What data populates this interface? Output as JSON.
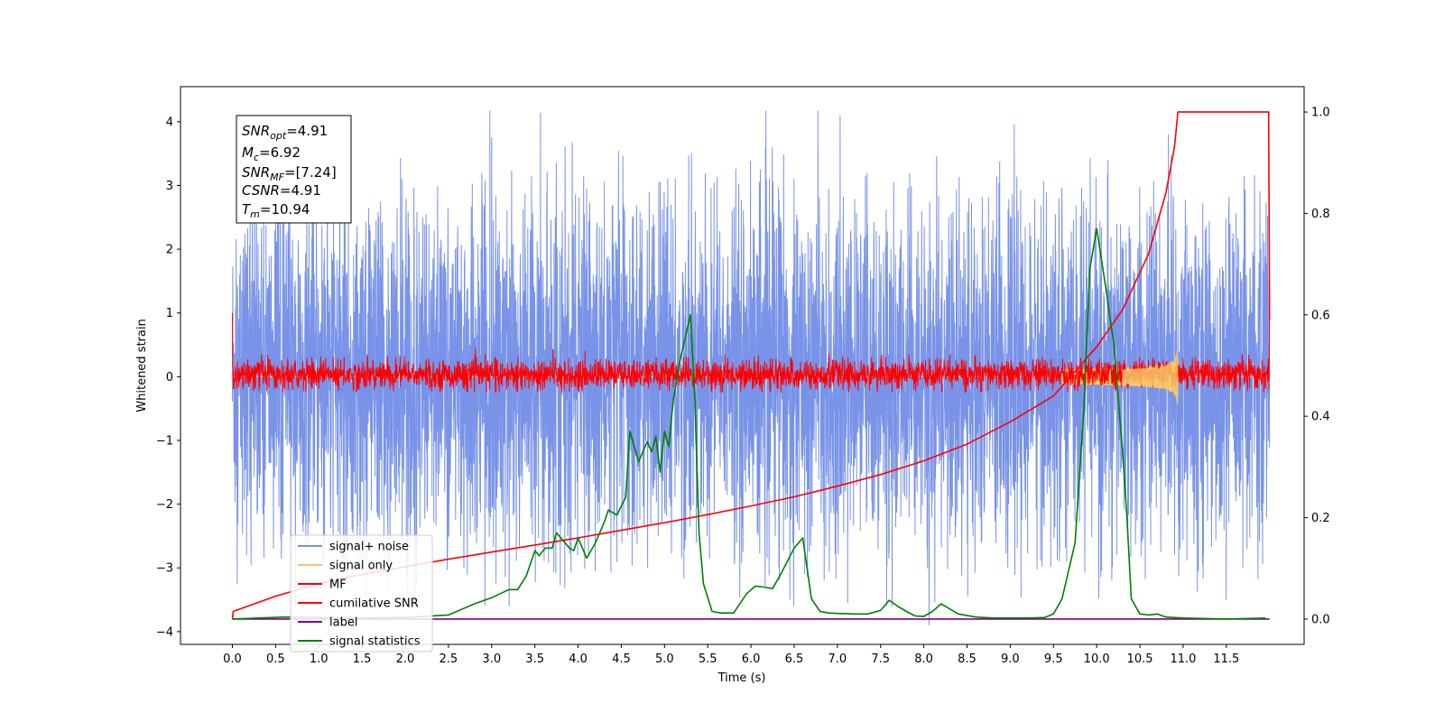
{
  "chart_data": {
    "type": "line",
    "xlabel": "Time (s)",
    "ylabel": "Whitened strain",
    "xlim": [
      -0.6,
      12.4
    ],
    "ylim": [
      -4.2,
      4.55
    ],
    "y2lim": [
      -0.05,
      1.05
    ],
    "x_ticks": [
      0.0,
      0.5,
      1.0,
      1.5,
      2.0,
      2.5,
      3.0,
      3.5,
      4.0,
      4.5,
      5.0,
      5.5,
      6.0,
      6.5,
      7.0,
      7.5,
      8.0,
      8.5,
      9.0,
      9.5,
      10.0,
      10.5,
      11.0,
      11.5
    ],
    "x_tick_labels": [
      "0.0",
      "0.5",
      "1.0",
      "1.5",
      "2.0",
      "2.5",
      "3.0",
      "3.5",
      "4.0",
      "4.5",
      "5.0",
      "5.5",
      "6.0",
      "6.5",
      "7.0",
      "7.5",
      "8.0",
      "8.5",
      "9.0",
      "9.5",
      "10.0",
      "10.5",
      "11.0",
      "11.5"
    ],
    "y_ticks": [
      -4,
      -3,
      -2,
      -1,
      0,
      1,
      2,
      3,
      4
    ],
    "y_tick_labels": [
      "−4",
      "−3",
      "−2",
      "−1",
      "0",
      "1",
      "2",
      "3",
      "4"
    ],
    "y2_ticks": [
      0.0,
      0.2,
      0.4,
      0.6,
      0.8,
      1.0
    ],
    "y2_tick_labels": [
      "0.0",
      "0.2",
      "0.4",
      "0.6",
      "0.8",
      "1.0"
    ],
    "legend_position": "lower-left",
    "grid": false,
    "info_box": {
      "snr_opt": {
        "base": "SNR",
        "sub": "opt",
        "value": "=4.91"
      },
      "mc": {
        "base": "M",
        "sub": "c",
        "value": "=6.92"
      },
      "snr_mf": {
        "base": "SNR",
        "sub": "MF",
        "value": "=[7.24]"
      },
      "csnr": {
        "base": "CSNR",
        "sub": "",
        "value": "=4.91"
      },
      "tm": {
        "base": "T",
        "sub": "m",
        "value": "=10.94"
      }
    },
    "series": [
      {
        "name": "signal+ noise",
        "color": "#7893e8",
        "axis": "left",
        "kind": "noise",
        "x_range": [
          0.0,
          12.0
        ],
        "envelope": {
          "typical_max": 2.0,
          "typical_min": -2.0,
          "peak_max": 4.17,
          "peak_min": -3.6
        },
        "peaks": [
          [
            2.98,
            4.17
          ],
          [
            3.0,
            3.75
          ],
          [
            5.28,
            3.47
          ],
          [
            10.83,
            3.8
          ],
          [
            8.06,
            -3.9
          ],
          [
            1.8,
            -3.35
          ],
          [
            11.5,
            -3.5
          ],
          [
            7.12,
            -3.55
          ]
        ]
      },
      {
        "name": "signal only",
        "color": "#f5c76b",
        "axis": "left",
        "kind": "chirp",
        "x_range": [
          0.0,
          10.94
        ],
        "peak_amplitude": 0.45
      },
      {
        "name": "MF",
        "color": "#ff0000",
        "axis": "left",
        "kind": "noise",
        "x_range": [
          0.0,
          12.0
        ],
        "envelope": {
          "typical_max": 0.22,
          "typical_min": -0.15,
          "peak_max": 0.45,
          "peak_min": -0.25
        },
        "edge_values": [
          [
            0.0,
            1.0
          ],
          [
            12.0,
            0.9
          ]
        ]
      },
      {
        "name": "cumilative SNR",
        "color": "#ff0000",
        "axis": "right",
        "x": [
          0.0,
          0.01,
          0.5,
          1.0,
          1.5,
          2.0,
          2.5,
          3.0,
          3.5,
          4.0,
          4.5,
          5.0,
          5.5,
          6.0,
          6.5,
          7.0,
          7.5,
          8.0,
          8.5,
          9.0,
          9.5,
          10.0,
          10.3,
          10.6,
          10.8,
          10.9,
          10.94,
          11.0,
          11.5,
          11.99,
          12.0
        ],
        "values": [
          0.0,
          0.015,
          0.045,
          0.07,
          0.088,
          0.103,
          0.118,
          0.132,
          0.146,
          0.16,
          0.175,
          0.19,
          0.206,
          0.223,
          0.241,
          0.262,
          0.285,
          0.312,
          0.345,
          0.389,
          0.44,
          0.537,
          0.61,
          0.72,
          0.84,
          0.93,
          1.0,
          1.0,
          1.0,
          1.0,
          0.59
        ]
      },
      {
        "name": "label",
        "color": "#800080",
        "axis": "right",
        "x": [
          0.0,
          12.0
        ],
        "values": [
          0.0,
          0.0
        ]
      },
      {
        "name": "signal statistics",
        "color": "#008000",
        "axis": "right",
        "x": [
          0.0,
          0.3,
          0.6,
          1.0,
          1.5,
          2.0,
          2.5,
          2.8,
          3.0,
          3.2,
          3.3,
          3.4,
          3.5,
          3.55,
          3.62,
          3.7,
          3.75,
          3.8,
          3.9,
          3.95,
          4.0,
          4.1,
          4.2,
          4.3,
          4.35,
          4.45,
          4.55,
          4.6,
          4.7,
          4.8,
          4.85,
          4.9,
          4.95,
          5.0,
          5.05,
          5.1,
          5.18,
          5.3,
          5.35,
          5.4,
          5.45,
          5.55,
          5.65,
          5.8,
          5.95,
          6.05,
          6.15,
          6.25,
          6.35,
          6.5,
          6.6,
          6.65,
          6.7,
          6.8,
          6.9,
          7.0,
          7.2,
          7.35,
          7.5,
          7.6,
          7.7,
          7.8,
          7.9,
          8.0,
          8.1,
          8.2,
          8.3,
          8.4,
          8.6,
          8.8,
          9.0,
          9.2,
          9.4,
          9.5,
          9.6,
          9.75,
          9.85,
          9.92,
          10.0,
          10.1,
          10.2,
          10.3,
          10.35,
          10.4,
          10.5,
          10.6,
          10.7,
          10.8,
          11.0,
          11.5,
          11.95
        ],
        "values": [
          0.0,
          0.002,
          0.004,
          0.003,
          0.002,
          0.003,
          0.008,
          0.03,
          0.042,
          0.058,
          0.058,
          0.085,
          0.135,
          0.125,
          0.14,
          0.14,
          0.17,
          0.16,
          0.14,
          0.135,
          0.16,
          0.12,
          0.15,
          0.19,
          0.215,
          0.205,
          0.24,
          0.37,
          0.31,
          0.35,
          0.33,
          0.36,
          0.29,
          0.37,
          0.34,
          0.43,
          0.51,
          0.6,
          0.44,
          0.17,
          0.07,
          0.015,
          0.012,
          0.012,
          0.05,
          0.065,
          0.063,
          0.06,
          0.09,
          0.14,
          0.16,
          0.1,
          0.04,
          0.015,
          0.012,
          0.011,
          0.01,
          0.01,
          0.017,
          0.037,
          0.025,
          0.015,
          0.006,
          0.005,
          0.015,
          0.03,
          0.02,
          0.01,
          0.004,
          0.002,
          0.002,
          0.002,
          0.003,
          0.01,
          0.04,
          0.15,
          0.41,
          0.69,
          0.77,
          0.66,
          0.54,
          0.33,
          0.2,
          0.04,
          0.01,
          0.008,
          0.01,
          0.004,
          0.002,
          0.0,
          0.002
        ]
      }
    ]
  }
}
